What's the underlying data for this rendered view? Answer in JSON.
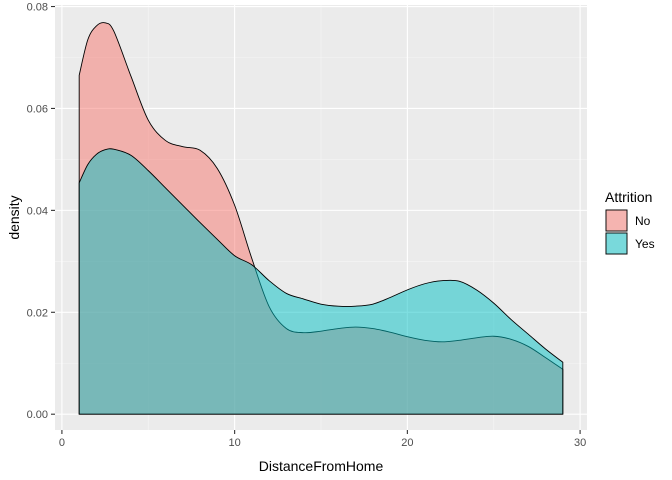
{
  "chart_data": {
    "type": "area",
    "xlabel": "DistanceFromHome",
    "ylabel": "density",
    "xlim": [
      -0.4,
      30.4
    ],
    "ylim": [
      -0.0031,
      0.0803
    ],
    "x_ticks": [
      0,
      10,
      20,
      30
    ],
    "x_tick_labels": [
      "0",
      "10",
      "20",
      "30"
    ],
    "y_ticks": [
      0.0,
      0.02,
      0.04,
      0.06,
      0.08
    ],
    "y_tick_labels": [
      "0.00",
      "0.02",
      "0.04",
      "0.06",
      "0.08"
    ],
    "grid": true,
    "legend": {
      "title": "Attrition",
      "placement": "right"
    },
    "panel_background": "#ebebeb",
    "series": [
      {
        "name": "No",
        "color": "#f8766d",
        "x": [
          1,
          1.5,
          2,
          2.5,
          3,
          4,
          5,
          6,
          7,
          8,
          9,
          10,
          11,
          12,
          13,
          14,
          15,
          16,
          17,
          18,
          19,
          20,
          21,
          22,
          23,
          24,
          25,
          26,
          27,
          28,
          29
        ],
        "y": [
          0.0665,
          0.0735,
          0.0762,
          0.0768,
          0.0752,
          0.0663,
          0.0577,
          0.0537,
          0.0525,
          0.0518,
          0.0482,
          0.041,
          0.0305,
          0.0211,
          0.0168,
          0.016,
          0.0163,
          0.0168,
          0.0171,
          0.0168,
          0.0161,
          0.0152,
          0.0145,
          0.0142,
          0.0145,
          0.015,
          0.0153,
          0.0147,
          0.0133,
          0.0111,
          0.0088
        ]
      },
      {
        "name": "Yes",
        "color": "#00bfc4",
        "x": [
          1,
          1.5,
          2,
          2.5,
          3,
          4,
          5,
          6,
          7,
          8,
          9,
          10,
          11,
          12,
          13,
          14,
          15,
          16,
          17,
          18,
          19,
          20,
          21,
          22,
          23,
          24,
          25,
          26,
          27,
          28,
          29
        ],
        "y": [
          0.0454,
          0.049,
          0.051,
          0.0519,
          0.052,
          0.0508,
          0.0478,
          0.0444,
          0.041,
          0.0376,
          0.0343,
          0.0311,
          0.0293,
          0.0262,
          0.0237,
          0.0226,
          0.0216,
          0.0212,
          0.0212,
          0.0216,
          0.0229,
          0.0244,
          0.0256,
          0.0262,
          0.0261,
          0.0244,
          0.0218,
          0.0186,
          0.0157,
          0.0128,
          0.0102
        ]
      }
    ]
  }
}
